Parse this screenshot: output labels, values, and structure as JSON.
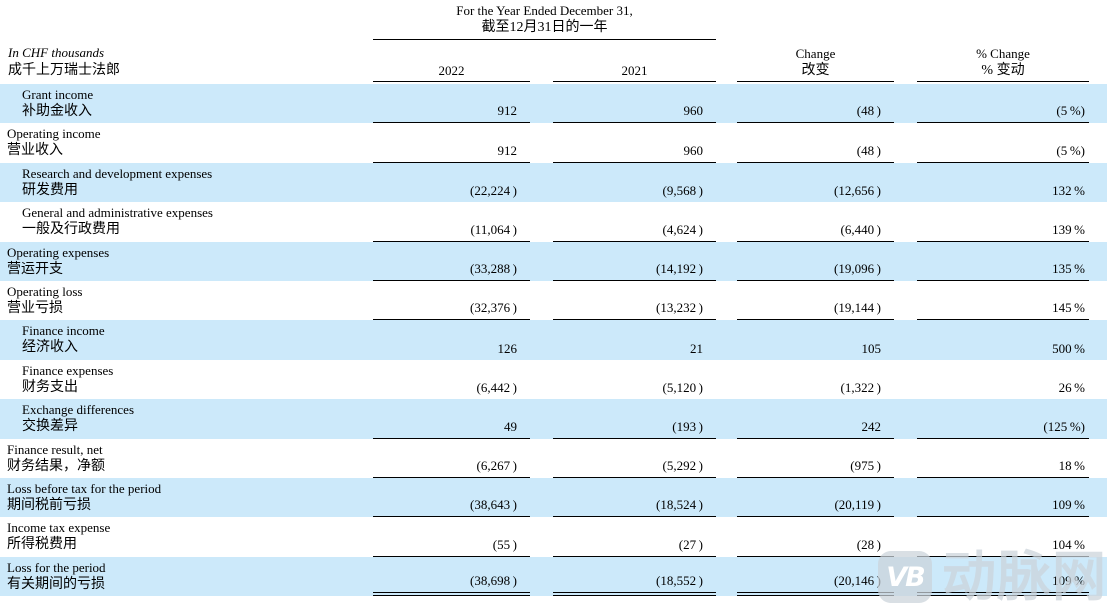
{
  "colors": {
    "row_highlight": "#cce9fa",
    "ink": "#000000"
  },
  "header": {
    "period_en": "For the Year Ended December 31,",
    "period_zh": "截至12月31日的一年",
    "note_en": "In CHF thousands",
    "note_zh": "成千上万瑞士法郎",
    "col_2022": "2022",
    "col_2021": "2021",
    "change_en": "Change",
    "change_zh": "改变",
    "pct_change_en": "% Change",
    "pct_change_zh": "% 变动"
  },
  "rows": [
    {
      "en": "Grant income",
      "zh": "补助金收入",
      "v2022": "912",
      "v2021": "960",
      "change": "(48 )",
      "pct": "(5 %)",
      "indent": true,
      "shaded": true,
      "underline": "single"
    },
    {
      "en": "Operating income",
      "zh": "营业收入",
      "v2022": "912",
      "v2021": "960",
      "change": "(48 )",
      "pct": "(5 %)",
      "indent": false,
      "shaded": false,
      "underline": "single"
    },
    {
      "en": "Research and development expenses",
      "zh": "研发费用",
      "v2022": "(22,224 )",
      "v2021": "(9,568 )",
      "change": "(12,656 )",
      "pct": "132 %",
      "indent": true,
      "shaded": true,
      "underline": "none"
    },
    {
      "en": "General and administrative expenses",
      "zh": "一般及行政费用",
      "v2022": "(11,064 )",
      "v2021": "(4,624 )",
      "change": "(6,440 )",
      "pct": "139 %",
      "indent": true,
      "shaded": false,
      "underline": "single"
    },
    {
      "en": "Operating expenses",
      "zh": "营运开支",
      "v2022": "(33,288 )",
      "v2021": "(14,192 )",
      "change": "(19,096 )",
      "pct": "135 %",
      "indent": false,
      "shaded": true,
      "underline": "single"
    },
    {
      "en": "Operating loss",
      "zh": "营业亏损",
      "v2022": "(32,376 )",
      "v2021": "(13,232 )",
      "change": "(19,144 )",
      "pct": "145 %",
      "indent": false,
      "shaded": false,
      "underline": "single"
    },
    {
      "en": "Finance income",
      "zh": "经济收入",
      "v2022": "126",
      "v2021": "21",
      "change": "105",
      "pct": "500 %",
      "indent": true,
      "shaded": true,
      "underline": "none"
    },
    {
      "en": "Finance expenses",
      "zh": "财务支出",
      "v2022": "(6,442 )",
      "v2021": "(5,120 )",
      "change": "(1,322 )",
      "pct": "26 %",
      "indent": true,
      "shaded": false,
      "underline": "none"
    },
    {
      "en": "Exchange differences",
      "zh": "交换差异",
      "v2022": "49",
      "v2021": "(193 )",
      "change": "242",
      "pct": "(125 %)",
      "indent": true,
      "shaded": true,
      "underline": "single"
    },
    {
      "en": "Finance result, net",
      "zh": "财务结果，净额",
      "v2022": "(6,267 )",
      "v2021": "(5,292 )",
      "change": "(975 )",
      "pct": "18 %",
      "indent": false,
      "shaded": false,
      "underline": "single"
    },
    {
      "en": "Loss before tax for the period",
      "zh": "期间税前亏损",
      "v2022": "(38,643 )",
      "v2021": "(18,524 )",
      "change": "(20,119 )",
      "pct": "109 %",
      "indent": false,
      "shaded": true,
      "underline": "single"
    },
    {
      "en": "Income tax expense",
      "zh": "所得税费用",
      "v2022": "(55 )",
      "v2021": "(27 )",
      "change": "(28 )",
      "pct": "104 %",
      "indent": false,
      "shaded": false,
      "underline": "single"
    },
    {
      "en": "Loss for the period",
      "zh": "有关期间的亏损",
      "v2022": "(38,698 )",
      "v2021": "(18,552 )",
      "change": "(20,146 )",
      "pct": "109 %",
      "indent": false,
      "shaded": true,
      "underline": "double"
    }
  ],
  "watermark": {
    "logo": "VB",
    "text": "动脉网"
  }
}
